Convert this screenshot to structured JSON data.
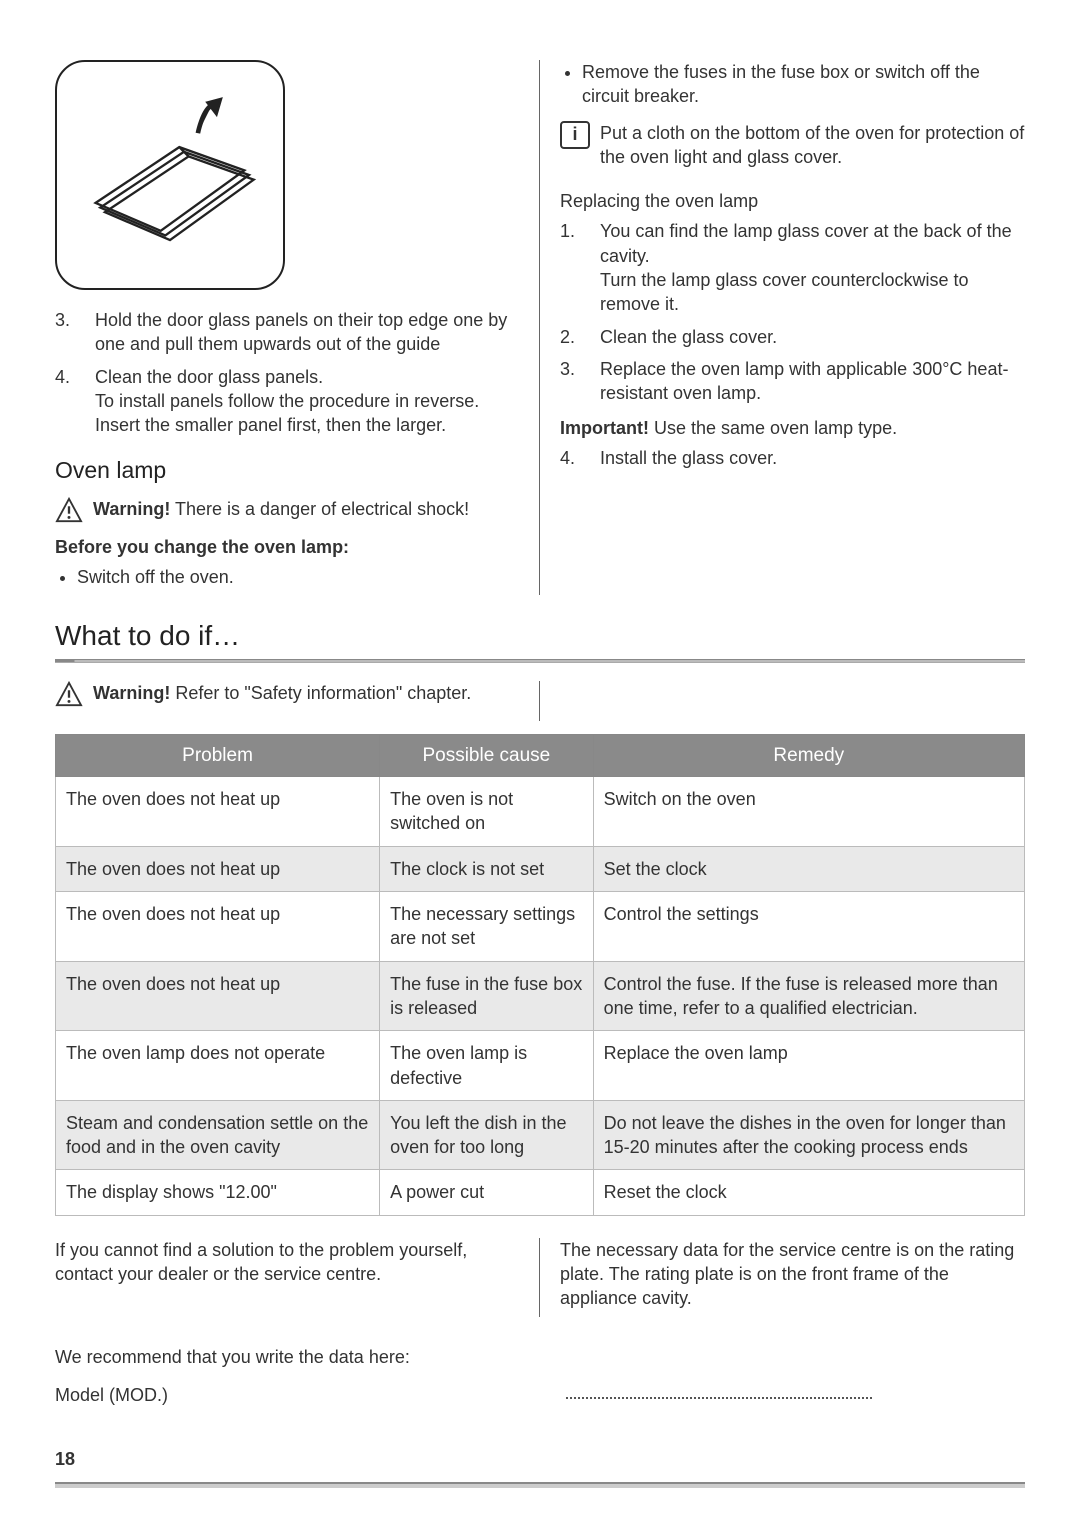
{
  "left_column": {
    "steps_continued": [
      {
        "num": "3.",
        "text": "Hold the door glass panels on their top edge one by one and pull them upwards out of the guide"
      },
      {
        "num": "4.",
        "text": "Clean the door glass panels.",
        "sub": "To install panels follow the procedure in reverse. Insert the smaller panel first, then the larger."
      }
    ],
    "oven_lamp_heading": "Oven lamp",
    "warning_text": "Warning! There is a danger of electrical shock!",
    "warning_bold": "Warning!",
    "before_change_heading": "Before you change the oven lamp:",
    "before_change_items": [
      "Switch off the oven."
    ]
  },
  "right_column": {
    "bullet_items": [
      "Remove the fuses in the fuse box or switch off the circuit breaker."
    ],
    "info_text": "Put a cloth on the bottom of the oven for protection of the oven light and glass cover.",
    "replacing_heading": "Replacing the oven lamp",
    "replacing_steps": [
      {
        "num": "1.",
        "text": "You can find the lamp glass cover at the back of the cavity.",
        "sub": "Turn the lamp glass cover counterclockwise to remove it."
      },
      {
        "num": "2.",
        "text": "Clean the glass cover."
      },
      {
        "num": "3.",
        "text": "Replace the oven lamp with applicable 300°C heat-resistant oven lamp."
      }
    ],
    "important_bold": "Important!",
    "important_text": " Use the same oven lamp type.",
    "final_step": {
      "num": "4.",
      "text": "Install the glass cover."
    }
  },
  "what_to_do": {
    "title": "What to do if…",
    "warning_bold": "Warning!",
    "warning_text": " Refer to \"Safety information\" chapter."
  },
  "table": {
    "headers": [
      "Problem",
      "Possible cause",
      "Remedy"
    ],
    "rows": [
      [
        "The oven does not heat up",
        "The oven is not switched on",
        "Switch on the oven"
      ],
      [
        "The oven does not heat up",
        "The clock is not set",
        "Set the clock"
      ],
      [
        "The oven does not heat up",
        "The necessary settings are not set",
        "Control the settings"
      ],
      [
        "The oven does not heat up",
        "The fuse in the fuse box is released",
        "Control the fuse. If the fuse is released more than one time, refer to a qualified electrician."
      ],
      [
        "The oven lamp does not operate",
        "The oven lamp is defective",
        "Replace the oven lamp"
      ],
      [
        "Steam and condensation settle on the food and in the oven cavity",
        "You left the dish in the oven for too long",
        "Do not leave the dishes in the oven for longer than 15-20 minutes after the cooking process ends"
      ],
      [
        "The display shows \"12.00\"",
        "A power cut",
        "Reset the clock"
      ]
    ],
    "header_bg": "#8a8a8a",
    "header_text_color": "#ffffff",
    "row_even_bg": "#e9e9e9",
    "row_odd_bg": "#ffffff",
    "border_color": "#bbbbbb"
  },
  "bottom": {
    "left_text": "If you cannot find a solution to the problem yourself, contact your dealer or the service centre.",
    "right_text": "The necessary data for the service centre is on the rating plate. The rating plate is on the front frame of the appliance cavity.",
    "recommend_text": "We recommend that you write the data here:",
    "model_label": "Model (MOD.)"
  },
  "page_number": "18"
}
